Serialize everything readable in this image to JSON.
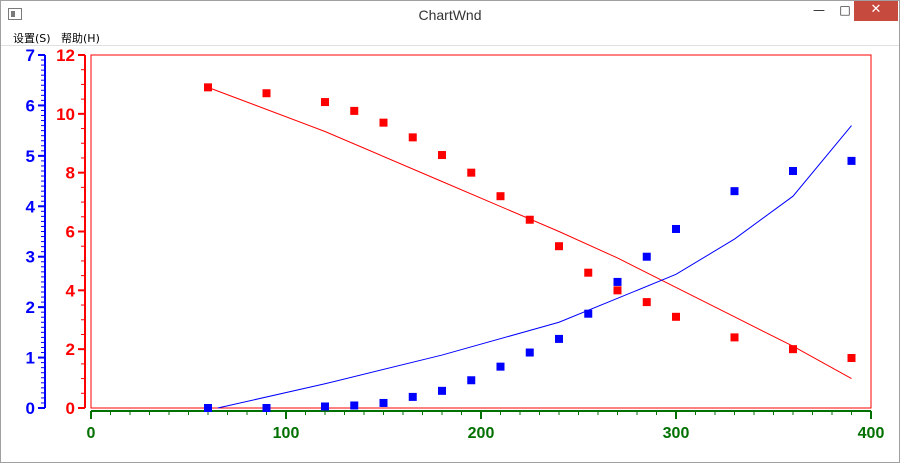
{
  "window": {
    "title": "ChartWnd",
    "minimize_glyph": "—",
    "maximize_glyph": "□",
    "close_glyph": "✕"
  },
  "menu": {
    "items": [
      {
        "label": "设置(S)"
      },
      {
        "label": "帮助(H)"
      }
    ]
  },
  "chart_data": {
    "type": "scatter",
    "title": "",
    "xlabel": "",
    "ylabel": "",
    "x_axis": {
      "range": [
        0,
        400
      ],
      "ticks": [
        0,
        100,
        200,
        300,
        400
      ],
      "color": "#007000"
    },
    "y_left_inner": {
      "range": [
        0,
        12
      ],
      "ticks": [
        0,
        2,
        4,
        6,
        8,
        10,
        12
      ],
      "color": "#ff0000"
    },
    "y_left_outer": {
      "range": [
        0,
        7
      ],
      "ticks": [
        0,
        1,
        2,
        3,
        4,
        5,
        6,
        7
      ],
      "color": "#0000ff"
    },
    "grid": false,
    "legend": "none",
    "series": [
      {
        "color": "#ff0000",
        "axis": "red",
        "points": [
          [
            60,
            10.9
          ],
          [
            90,
            10.7
          ],
          [
            120,
            10.4
          ],
          [
            135,
            10.1
          ],
          [
            150,
            9.7
          ],
          [
            165,
            9.2
          ],
          [
            180,
            8.6
          ],
          [
            195,
            8.0
          ],
          [
            210,
            7.2
          ],
          [
            225,
            6.4
          ],
          [
            240,
            5.5
          ],
          [
            255,
            4.6
          ],
          [
            270,
            4.0
          ],
          [
            285,
            3.6
          ],
          [
            300,
            3.1
          ],
          [
            330,
            2.4
          ],
          [
            360,
            2.0
          ],
          [
            390,
            1.7
          ]
        ],
        "fit_line": [
          [
            60,
            10.9
          ],
          [
            120,
            9.4
          ],
          [
            180,
            7.7
          ],
          [
            240,
            6.0
          ],
          [
            270,
            5.1
          ],
          [
            300,
            4.1
          ],
          [
            330,
            3.1
          ],
          [
            360,
            2.1
          ],
          [
            390,
            1.0
          ]
        ]
      },
      {
        "color": "#0000ff",
        "axis": "blue",
        "points": [
          [
            60,
            0.0
          ],
          [
            90,
            0.0
          ],
          [
            120,
            0.03
          ],
          [
            135,
            0.05
          ],
          [
            150,
            0.1
          ],
          [
            165,
            0.22
          ],
          [
            180,
            0.34
          ],
          [
            195,
            0.55
          ],
          [
            210,
            0.82
          ],
          [
            225,
            1.1
          ],
          [
            240,
            1.37
          ],
          [
            255,
            1.87
          ],
          [
            270,
            2.5
          ],
          [
            285,
            3.0
          ],
          [
            300,
            3.55
          ],
          [
            330,
            4.3
          ],
          [
            360,
            4.7
          ],
          [
            390,
            4.9
          ]
        ],
        "fit_line": [
          [
            65,
            0.0
          ],
          [
            120,
            0.48
          ],
          [
            180,
            1.05
          ],
          [
            240,
            1.7
          ],
          [
            300,
            2.65
          ],
          [
            330,
            3.35
          ],
          [
            360,
            4.2
          ],
          [
            390,
            5.6
          ]
        ]
      }
    ]
  }
}
